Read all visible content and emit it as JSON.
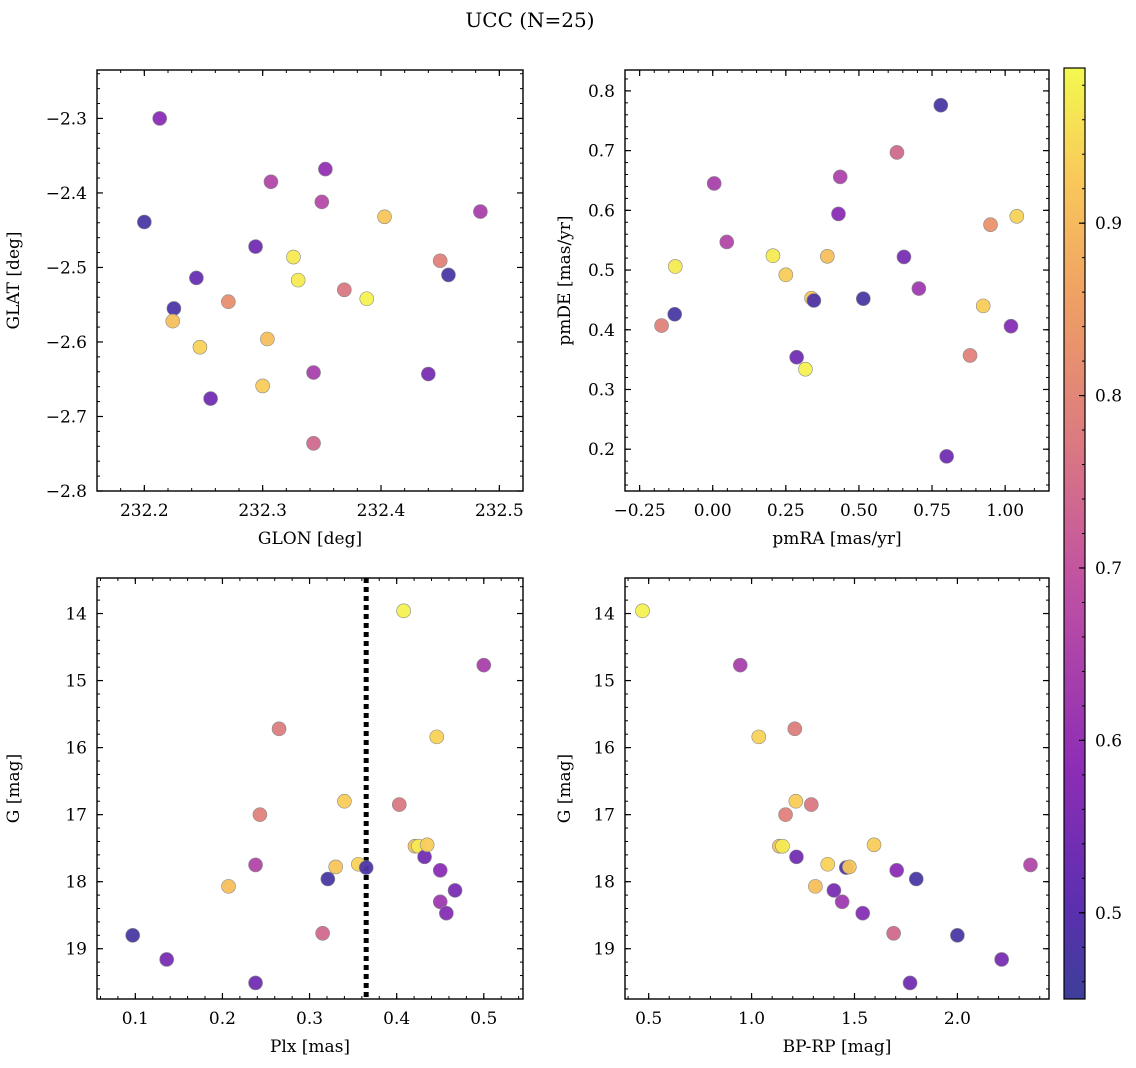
{
  "figure_title": "UCC (N=25)",
  "colorbar": {
    "range": [
      0.45,
      0.99
    ],
    "ticks": [
      0.5,
      0.6,
      0.7,
      0.8,
      0.9
    ],
    "tick_labels": [
      "0.5",
      "0.6",
      "0.7",
      "0.8",
      "0.9"
    ],
    "colormap": "plasma"
  },
  "chart_data": [
    {
      "type": "scatter",
      "id": "spatial",
      "xlabel": "GLON [deg]",
      "ylabel": "GLAT [deg]",
      "xlim": [
        232.16,
        232.52
      ],
      "ylim": [
        -2.8,
        -2.235
      ],
      "xticks": [
        232.2,
        232.3,
        232.4,
        232.5
      ],
      "xtick_labels": [
        "232.2",
        "232.3",
        "232.4",
        "232.5"
      ],
      "yticks": [
        -2.3,
        -2.4,
        -2.5,
        -2.6,
        -2.7,
        -2.8
      ],
      "ytick_labels": [
        "−2.3",
        "−2.4",
        "−2.5",
        "−2.6",
        "−2.7",
        "−2.8"
      ],
      "points": [
        {
          "x": 232.213,
          "y": -2.3,
          "c": 0.58
        },
        {
          "x": 232.2,
          "y": -2.439,
          "c": 0.47
        },
        {
          "x": 232.225,
          "y": -2.555,
          "c": 0.48
        },
        {
          "x": 232.224,
          "y": -2.572,
          "c": 0.91
        },
        {
          "x": 232.244,
          "y": -2.514,
          "c": 0.52
        },
        {
          "x": 232.247,
          "y": -2.607,
          "c": 0.94
        },
        {
          "x": 232.256,
          "y": -2.676,
          "c": 0.54
        },
        {
          "x": 232.271,
          "y": -2.546,
          "c": 0.82
        },
        {
          "x": 232.294,
          "y": -2.472,
          "c": 0.54
        },
        {
          "x": 232.3,
          "y": -2.659,
          "c": 0.93
        },
        {
          "x": 232.304,
          "y": -2.596,
          "c": 0.91
        },
        {
          "x": 232.307,
          "y": -2.385,
          "c": 0.66
        },
        {
          "x": 232.326,
          "y": -2.486,
          "c": 0.97
        },
        {
          "x": 232.33,
          "y": -2.517,
          "c": 0.97
        },
        {
          "x": 232.343,
          "y": -2.641,
          "c": 0.64
        },
        {
          "x": 232.343,
          "y": -2.736,
          "c": 0.74
        },
        {
          "x": 232.35,
          "y": -2.412,
          "c": 0.67
        },
        {
          "x": 232.353,
          "y": -2.368,
          "c": 0.6
        },
        {
          "x": 232.369,
          "y": -2.53,
          "c": 0.77
        },
        {
          "x": 232.388,
          "y": -2.542,
          "c": 0.98
        },
        {
          "x": 232.403,
          "y": -2.432,
          "c": 0.92
        },
        {
          "x": 232.44,
          "y": -2.643,
          "c": 0.55
        },
        {
          "x": 232.45,
          "y": -2.491,
          "c": 0.79
        },
        {
          "x": 232.457,
          "y": -2.51,
          "c": 0.47
        },
        {
          "x": 232.484,
          "y": -2.425,
          "c": 0.64
        }
      ]
    },
    {
      "type": "scatter",
      "id": "propermotion",
      "xlabel": "pmRA [mas/yr]",
      "ylabel": "pmDE [mas/yr]",
      "xlim": [
        -0.3,
        1.15
      ],
      "ylim": [
        0.13,
        0.835
      ],
      "xticks": [
        -0.25,
        0.0,
        0.25,
        0.5,
        0.75,
        1.0
      ],
      "xtick_labels": [
        "−0.25",
        "0.00",
        "0.25",
        "0.50",
        "0.75",
        "1.00"
      ],
      "yticks": [
        0.2,
        0.3,
        0.4,
        0.5,
        0.6,
        0.7,
        0.8
      ],
      "ytick_labels": [
        "0.2",
        "0.3",
        "0.4",
        "0.5",
        "0.6",
        "0.7",
        "0.8"
      ],
      "points": [
        {
          "x": -0.175,
          "y": 0.407,
          "c": 0.79
        },
        {
          "x": -0.13,
          "y": 0.426,
          "c": 0.47
        },
        {
          "x": -0.128,
          "y": 0.506,
          "c": 0.97
        },
        {
          "x": 0.005,
          "y": 0.645,
          "c": 0.64
        },
        {
          "x": 0.048,
          "y": 0.547,
          "c": 0.66
        },
        {
          "x": 0.206,
          "y": 0.524,
          "c": 0.97
        },
        {
          "x": 0.25,
          "y": 0.492,
          "c": 0.93
        },
        {
          "x": 0.287,
          "y": 0.354,
          "c": 0.54
        },
        {
          "x": 0.317,
          "y": 0.334,
          "c": 0.98
        },
        {
          "x": 0.338,
          "y": 0.453,
          "c": 0.92
        },
        {
          "x": 0.346,
          "y": 0.449,
          "c": 0.48
        },
        {
          "x": 0.392,
          "y": 0.523,
          "c": 0.91
        },
        {
          "x": 0.43,
          "y": 0.594,
          "c": 0.58
        },
        {
          "x": 0.436,
          "y": 0.656,
          "c": 0.65
        },
        {
          "x": 0.515,
          "y": 0.452,
          "c": 0.47
        },
        {
          "x": 0.63,
          "y": 0.697,
          "c": 0.74
        },
        {
          "x": 0.654,
          "y": 0.522,
          "c": 0.55
        },
        {
          "x": 0.705,
          "y": 0.469,
          "c": 0.62
        },
        {
          "x": 0.78,
          "y": 0.776,
          "c": 0.47
        },
        {
          "x": 0.8,
          "y": 0.188,
          "c": 0.54
        },
        {
          "x": 0.88,
          "y": 0.357,
          "c": 0.79
        },
        {
          "x": 0.925,
          "y": 0.44,
          "c": 0.93
        },
        {
          "x": 0.95,
          "y": 0.576,
          "c": 0.83
        },
        {
          "x": 1.02,
          "y": 0.406,
          "c": 0.57
        },
        {
          "x": 1.04,
          "y": 0.59,
          "c": 0.94
        }
      ]
    },
    {
      "type": "scatter",
      "id": "plx_g",
      "xlabel": "Plx [mas]",
      "ylabel": "G [mag]",
      "xlim": [
        0.056,
        0.545
      ],
      "ylim": [
        19.75,
        13.47
      ],
      "y_inverted": true,
      "xticks": [
        0.1,
        0.2,
        0.3,
        0.4,
        0.5
      ],
      "xtick_labels": [
        "0.1",
        "0.2",
        "0.3",
        "0.4",
        "0.5"
      ],
      "yticks": [
        14,
        15,
        16,
        17,
        18,
        19
      ],
      "ytick_labels": [
        "14",
        "15",
        "16",
        "17",
        "18",
        "19"
      ],
      "vline": {
        "x": 0.365,
        "style": "dotted"
      },
      "points": [
        {
          "x": 0.097,
          "y": 18.8,
          "c": 0.47
        },
        {
          "x": 0.136,
          "y": 19.16,
          "c": 0.55
        },
        {
          "x": 0.207,
          "y": 18.07,
          "c": 0.91
        },
        {
          "x": 0.238,
          "y": 17.75,
          "c": 0.66
        },
        {
          "x": 0.238,
          "y": 19.51,
          "c": 0.54
        },
        {
          "x": 0.243,
          "y": 17.0,
          "c": 0.79
        },
        {
          "x": 0.265,
          "y": 15.72,
          "c": 0.78
        },
        {
          "x": 0.315,
          "y": 18.77,
          "c": 0.74
        },
        {
          "x": 0.321,
          "y": 17.96,
          "c": 0.47
        },
        {
          "x": 0.33,
          "y": 17.78,
          "c": 0.92
        },
        {
          "x": 0.34,
          "y": 16.8,
          "c": 0.93
        },
        {
          "x": 0.356,
          "y": 17.74,
          "c": 0.94
        },
        {
          "x": 0.365,
          "y": 17.79,
          "c": 0.48
        },
        {
          "x": 0.403,
          "y": 16.85,
          "c": 0.77
        },
        {
          "x": 0.408,
          "y": 13.96,
          "c": 0.98
        },
        {
          "x": 0.421,
          "y": 17.47,
          "c": 0.91
        },
        {
          "x": 0.425,
          "y": 17.47,
          "c": 0.97
        },
        {
          "x": 0.432,
          "y": 17.63,
          "c": 0.54
        },
        {
          "x": 0.435,
          "y": 17.45,
          "c": 0.93
        },
        {
          "x": 0.446,
          "y": 15.84,
          "c": 0.94
        },
        {
          "x": 0.45,
          "y": 17.83,
          "c": 0.58
        },
        {
          "x": 0.45,
          "y": 18.3,
          "c": 0.62
        },
        {
          "x": 0.457,
          "y": 18.47,
          "c": 0.57
        },
        {
          "x": 0.467,
          "y": 18.13,
          "c": 0.55
        },
        {
          "x": 0.5,
          "y": 14.77,
          "c": 0.64
        }
      ]
    },
    {
      "type": "scatter",
      "id": "cmd",
      "xlabel": "BP-RP [mag]",
      "ylabel": "G [mag]",
      "xlim": [
        0.385,
        2.445
      ],
      "ylim": [
        19.75,
        13.47
      ],
      "y_inverted": true,
      "xticks": [
        0.5,
        1.0,
        1.5,
        2.0
      ],
      "xtick_labels": [
        "0.5",
        "1.0",
        "1.5",
        "2.0"
      ],
      "yticks": [
        14,
        15,
        16,
        17,
        18,
        19
      ],
      "ytick_labels": [
        "14",
        "15",
        "16",
        "17",
        "18",
        "19"
      ],
      "points": [
        {
          "x": 0.47,
          "y": 13.96,
          "c": 0.98
        },
        {
          "x": 0.945,
          "y": 14.77,
          "c": 0.64
        },
        {
          "x": 1.035,
          "y": 15.84,
          "c": 0.94
        },
        {
          "x": 1.135,
          "y": 17.47,
          "c": 0.91
        },
        {
          "x": 1.15,
          "y": 17.47,
          "c": 0.97
        },
        {
          "x": 1.165,
          "y": 17.0,
          "c": 0.79
        },
        {
          "x": 1.21,
          "y": 15.72,
          "c": 0.78
        },
        {
          "x": 1.215,
          "y": 16.8,
          "c": 0.93
        },
        {
          "x": 1.218,
          "y": 17.63,
          "c": 0.54
        },
        {
          "x": 1.29,
          "y": 16.85,
          "c": 0.77
        },
        {
          "x": 1.31,
          "y": 18.07,
          "c": 0.91
        },
        {
          "x": 1.37,
          "y": 17.74,
          "c": 0.94
        },
        {
          "x": 1.4,
          "y": 18.13,
          "c": 0.55
        },
        {
          "x": 1.44,
          "y": 18.3,
          "c": 0.62
        },
        {
          "x": 1.46,
          "y": 17.79,
          "c": 0.48
        },
        {
          "x": 1.475,
          "y": 17.78,
          "c": 0.92
        },
        {
          "x": 1.54,
          "y": 18.47,
          "c": 0.57
        },
        {
          "x": 1.595,
          "y": 17.45,
          "c": 0.93
        },
        {
          "x": 1.69,
          "y": 18.77,
          "c": 0.74
        },
        {
          "x": 1.705,
          "y": 17.83,
          "c": 0.58
        },
        {
          "x": 1.77,
          "y": 19.51,
          "c": 0.54
        },
        {
          "x": 1.8,
          "y": 17.96,
          "c": 0.47
        },
        {
          "x": 2.0,
          "y": 18.8,
          "c": 0.47
        },
        {
          "x": 2.215,
          "y": 19.16,
          "c": 0.55
        },
        {
          "x": 2.355,
          "y": 17.75,
          "c": 0.66
        }
      ]
    }
  ]
}
